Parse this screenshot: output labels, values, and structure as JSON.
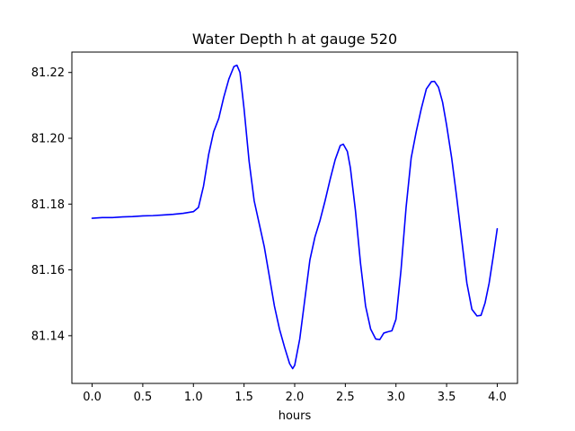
{
  "chart_data": {
    "type": "line",
    "title": "Water Depth h at gauge 520",
    "xlabel": "hours",
    "ylabel": "",
    "xlim": [
      -0.2,
      4.2
    ],
    "ylim": [
      81.1255,
      81.2262
    ],
    "xticks": [
      0.0,
      0.5,
      1.0,
      1.5,
      2.0,
      2.5,
      3.0,
      3.5,
      4.0
    ],
    "xtick_labels": [
      "0.0",
      "0.5",
      "1.0",
      "1.5",
      "2.0",
      "2.5",
      "3.0",
      "3.5",
      "4.0"
    ],
    "yticks": [
      81.14,
      81.16,
      81.18,
      81.2,
      81.22
    ],
    "ytick_labels": [
      "81.14",
      "81.16",
      "81.18",
      "81.20",
      "81.22"
    ],
    "grid": false,
    "series": [
      {
        "color": "#0000ff",
        "x": [
          0.0,
          0.1,
          0.2,
          0.3,
          0.4,
          0.5,
          0.6,
          0.7,
          0.8,
          0.9,
          1.0,
          1.05,
          1.1,
          1.15,
          1.2,
          1.25,
          1.3,
          1.35,
          1.4,
          1.43,
          1.46,
          1.5,
          1.55,
          1.6,
          1.65,
          1.7,
          1.75,
          1.8,
          1.85,
          1.9,
          1.95,
          1.98,
          2.0,
          2.05,
          2.1,
          2.15,
          2.2,
          2.25,
          2.3,
          2.35,
          2.4,
          2.45,
          2.48,
          2.52,
          2.55,
          2.6,
          2.65,
          2.7,
          2.75,
          2.8,
          2.84,
          2.88,
          2.92,
          2.96,
          3.0,
          3.05,
          3.1,
          3.15,
          3.2,
          3.25,
          3.3,
          3.35,
          3.38,
          3.42,
          3.46,
          3.5,
          3.55,
          3.6,
          3.65,
          3.7,
          3.75,
          3.8,
          3.84,
          3.88,
          3.92,
          3.96,
          4.0
        ],
        "y": [
          81.1757,
          81.1759,
          81.1759,
          81.1761,
          81.1762,
          81.1764,
          81.1765,
          81.1767,
          81.1769,
          81.1772,
          81.1777,
          81.179,
          81.1855,
          81.195,
          81.202,
          81.206,
          81.2125,
          81.218,
          81.2218,
          81.2222,
          81.22,
          81.209,
          81.193,
          81.181,
          81.174,
          81.167,
          81.158,
          81.149,
          81.142,
          81.1365,
          81.1315,
          81.13,
          81.131,
          81.139,
          81.151,
          81.163,
          81.17,
          81.175,
          81.181,
          81.1875,
          81.1935,
          81.1978,
          81.1982,
          81.196,
          81.191,
          81.178,
          81.162,
          81.149,
          81.142,
          81.139,
          81.1388,
          81.1408,
          81.1412,
          81.1415,
          81.145,
          81.16,
          81.179,
          81.194,
          81.202,
          81.209,
          81.215,
          81.2172,
          81.2173,
          81.2155,
          81.211,
          81.204,
          81.194,
          81.182,
          81.169,
          81.156,
          81.148,
          81.146,
          81.1462,
          81.15,
          81.156,
          81.164,
          81.1725
        ]
      }
    ]
  }
}
